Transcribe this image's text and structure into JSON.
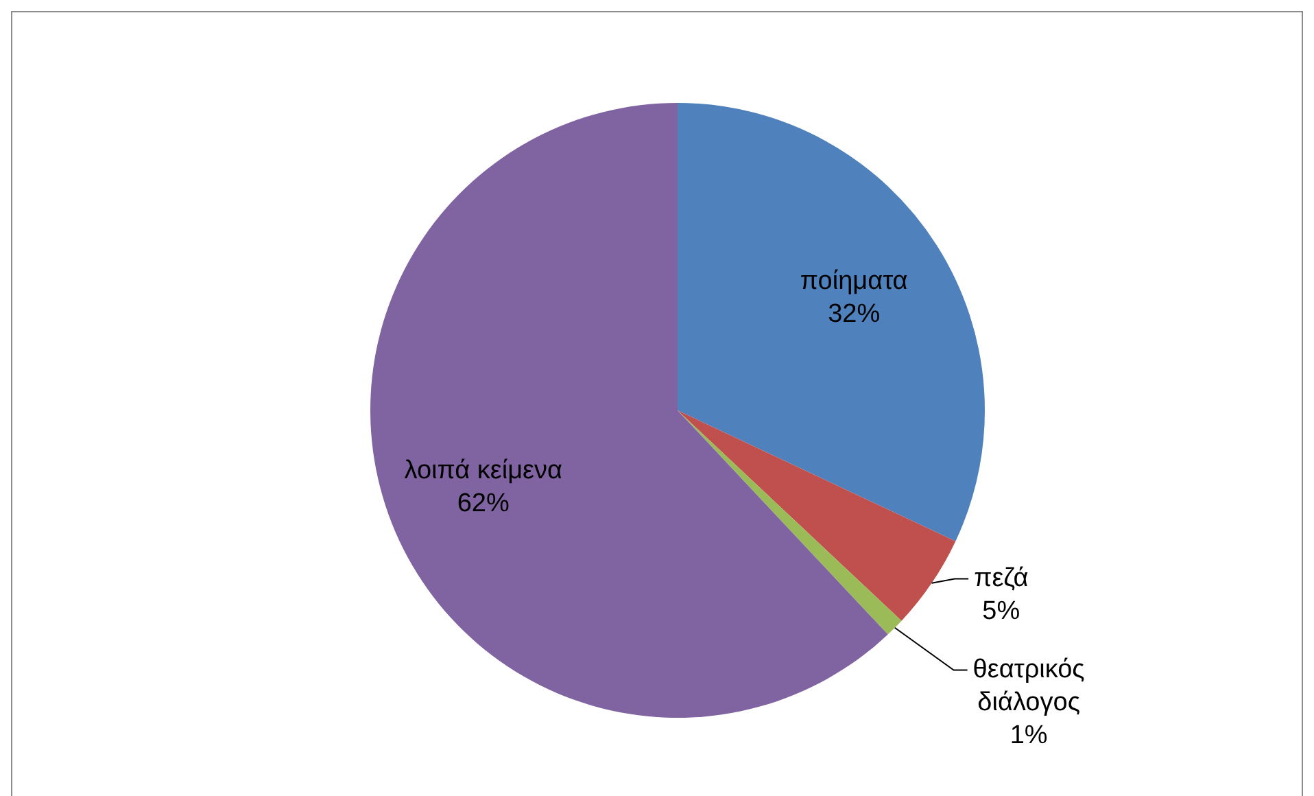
{
  "chart_data": {
    "type": "pie",
    "categories": [
      "ποίηματα",
      "πεζά",
      "θεατρικός διάλογος",
      "λοιπά κείμενα"
    ],
    "values": [
      32,
      5,
      1,
      62
    ],
    "value_labels": [
      "32%",
      "5%",
      "1%",
      "62%"
    ],
    "colors": [
      "#4f81bd",
      "#c0504d",
      "#9bbb59",
      "#8064a2"
    ],
    "legend": false
  }
}
